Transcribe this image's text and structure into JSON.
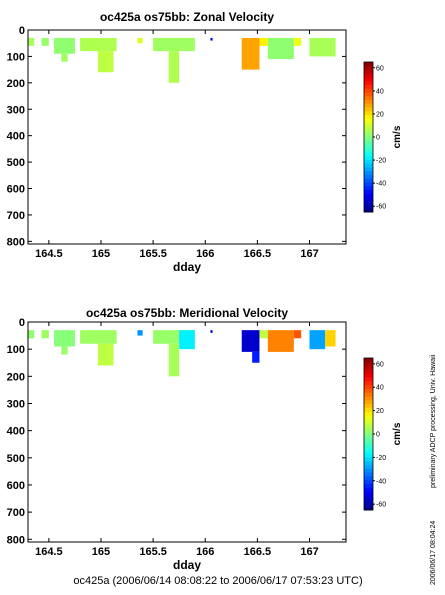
{
  "chart_data": [
    {
      "type": "heatmap",
      "title": "oc425a os75bb: Zonal Velocity",
      "xlabel": "dday",
      "ylabel": "",
      "xlim": [
        164.3,
        167.35
      ],
      "ylim": [
        0,
        810
      ],
      "y_inverted": true,
      "xticks": [
        164.5,
        165,
        165.5,
        166,
        166.5,
        167
      ],
      "yticks": [
        0,
        100,
        200,
        300,
        400,
        500,
        600,
        700,
        800
      ],
      "colorbar": {
        "label": "cm/s",
        "range": [
          -65,
          65
        ],
        "ticks": [
          -60,
          -40,
          -20,
          0,
          20,
          40,
          60
        ]
      },
      "cells": [
        {
          "x0": 164.3,
          "x1": 164.36,
          "y0": 30,
          "y1": 60,
          "v": 5
        },
        {
          "x0": 164.43,
          "x1": 164.5,
          "y0": 30,
          "y1": 60,
          "v": 3
        },
        {
          "x0": 164.55,
          "x1": 164.75,
          "y0": 30,
          "y1": 90,
          "v": 2
        },
        {
          "x0": 164.62,
          "x1": 164.68,
          "y0": 90,
          "y1": 120,
          "v": 4
        },
        {
          "x0": 164.8,
          "x1": 165.15,
          "y0": 30,
          "y1": 80,
          "v": 6
        },
        {
          "x0": 164.97,
          "x1": 165.12,
          "y0": 80,
          "y1": 160,
          "v": 8
        },
        {
          "x0": 165.35,
          "x1": 165.4,
          "y0": 30,
          "y1": 50,
          "v": 12
        },
        {
          "x0": 165.5,
          "x1": 165.9,
          "y0": 30,
          "y1": 80,
          "v": 4
        },
        {
          "x0": 165.65,
          "x1": 165.75,
          "y0": 80,
          "y1": 200,
          "v": 6
        },
        {
          "x0": 166.05,
          "x1": 166.07,
          "y0": 30,
          "y1": 40,
          "v": -55
        },
        {
          "x0": 166.35,
          "x1": 166.52,
          "y0": 30,
          "y1": 150,
          "v": 28
        },
        {
          "x0": 166.52,
          "x1": 166.6,
          "y0": 30,
          "y1": 60,
          "v": 18
        },
        {
          "x0": 166.6,
          "x1": 166.85,
          "y0": 30,
          "y1": 110,
          "v": 2
        },
        {
          "x0": 166.85,
          "x1": 166.92,
          "y0": 30,
          "y1": 60,
          "v": 14
        },
        {
          "x0": 167.0,
          "x1": 167.25,
          "y0": 30,
          "y1": 100,
          "v": 5
        }
      ]
    },
    {
      "type": "heatmap",
      "title": "oc425a os75bb: Meridional Velocity",
      "xlabel": "dday",
      "ylabel": "",
      "xlim": [
        164.3,
        167.35
      ],
      "ylim": [
        0,
        810
      ],
      "y_inverted": true,
      "xticks": [
        164.5,
        165,
        165.5,
        166,
        166.5,
        167
      ],
      "yticks": [
        0,
        100,
        200,
        300,
        400,
        500,
        600,
        700,
        800
      ],
      "colorbar": {
        "label": "cm/s",
        "range": [
          -65,
          65
        ],
        "ticks": [
          -60,
          -40,
          -20,
          0,
          20,
          40,
          60
        ]
      },
      "cells": [
        {
          "x0": 164.3,
          "x1": 164.36,
          "y0": 30,
          "y1": 60,
          "v": 2
        },
        {
          "x0": 164.43,
          "x1": 164.5,
          "y0": 30,
          "y1": 60,
          "v": 4
        },
        {
          "x0": 164.55,
          "x1": 164.75,
          "y0": 30,
          "y1": 90,
          "v": 1
        },
        {
          "x0": 164.62,
          "x1": 164.68,
          "y0": 90,
          "y1": 120,
          "v": 3
        },
        {
          "x0": 164.8,
          "x1": 165.15,
          "y0": 30,
          "y1": 80,
          "v": 4
        },
        {
          "x0": 164.97,
          "x1": 165.12,
          "y0": 80,
          "y1": 160,
          "v": 8
        },
        {
          "x0": 165.35,
          "x1": 165.4,
          "y0": 30,
          "y1": 50,
          "v": -30
        },
        {
          "x0": 165.5,
          "x1": 165.9,
          "y0": 30,
          "y1": 80,
          "v": 3
        },
        {
          "x0": 165.65,
          "x1": 165.75,
          "y0": 80,
          "y1": 200,
          "v": 5
        },
        {
          "x0": 165.75,
          "x1": 165.9,
          "y0": 30,
          "y1": 100,
          "v": -18
        },
        {
          "x0": 166.05,
          "x1": 166.07,
          "y0": 30,
          "y1": 40,
          "v": -55
        },
        {
          "x0": 166.35,
          "x1": 166.52,
          "y0": 30,
          "y1": 110,
          "v": -55
        },
        {
          "x0": 166.45,
          "x1": 166.52,
          "y0": 110,
          "y1": 150,
          "v": -45
        },
        {
          "x0": 166.52,
          "x1": 166.6,
          "y0": 30,
          "y1": 60,
          "v": 8
        },
        {
          "x0": 166.6,
          "x1": 166.85,
          "y0": 30,
          "y1": 110,
          "v": 32
        },
        {
          "x0": 166.85,
          "x1": 166.92,
          "y0": 30,
          "y1": 60,
          "v": 38
        },
        {
          "x0": 167.0,
          "x1": 167.15,
          "y0": 30,
          "y1": 100,
          "v": -28
        },
        {
          "x0": 167.15,
          "x1": 167.25,
          "y0": 30,
          "y1": 90,
          "v": 22
        }
      ]
    }
  ],
  "side_text": "preliminary ADCP processing,  Univ. Hawaii",
  "stamp_text": "2006/06/17 08:04:24",
  "footer_text": "oc425a (2006/06/14 08:08:22 to 2006/06/17 07:53:23 UTC)"
}
